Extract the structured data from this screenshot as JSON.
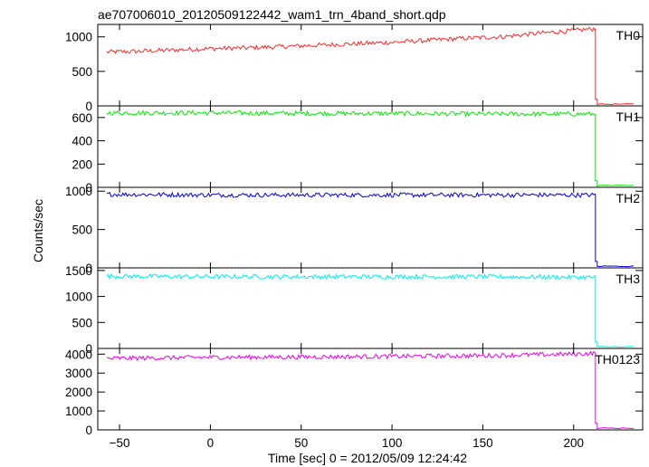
{
  "chart_data": {
    "type": "line",
    "title": "ae707006010_20120509122442_wam1_trn_4band_short.qdp",
    "xlabel": "Time [sec] 0 = 2012/05/09 12:24:42",
    "ylabel": "Counts/sec",
    "xlim": [
      -62,
      238
    ],
    "x_ticks": [
      -50,
      0,
      50,
      100,
      150,
      200
    ],
    "x_tick_labels": [
      "−50",
      "0",
      "50",
      "100",
      "150",
      "200"
    ],
    "drop_time": 212,
    "grid": false,
    "panels": [
      {
        "name": "TH0",
        "color": "#ff2a2a",
        "ylim": [
          0,
          1180
        ],
        "y_ticks": [
          0,
          500,
          1000
        ],
        "y_tick_labels": [
          "0",
          "500",
          "1000"
        ],
        "x": [
          -57,
          -40,
          -20,
          0,
          20,
          40,
          60,
          80,
          100,
          120,
          140,
          160,
          180,
          200,
          212,
          213,
          233
        ],
        "values": [
          780,
          790,
          810,
          830,
          840,
          860,
          880,
          900,
          920,
          950,
          980,
          1000,
          1050,
          1090,
          1120,
          0,
          0
        ]
      },
      {
        "name": "TH1",
        "color": "#00ee00",
        "ylim": [
          0,
          700
        ],
        "y_ticks": [
          0,
          200,
          400,
          600
        ],
        "y_tick_labels": [
          "0",
          "200",
          "400",
          "600"
        ],
        "x": [
          -57,
          0,
          50,
          100,
          150,
          200,
          212,
          213,
          233
        ],
        "values": [
          640,
          640,
          635,
          635,
          630,
          630,
          630,
          0,
          0
        ]
      },
      {
        "name": "TH2",
        "color": "#0000dd",
        "ylim": [
          0,
          1050
        ],
        "y_ticks": [
          0,
          500,
          1000
        ],
        "y_tick_labels": [
          "0",
          "500",
          "1000"
        ],
        "x": [
          -57,
          0,
          50,
          100,
          150,
          200,
          212,
          213,
          233
        ],
        "values": [
          960,
          950,
          950,
          950,
          950,
          950,
          950,
          0,
          0
        ]
      },
      {
        "name": "TH3",
        "color": "#00eeee",
        "ylim": [
          0,
          1550
        ],
        "y_ticks": [
          0,
          500,
          1000,
          1500
        ],
        "y_tick_labels": [
          "0",
          "500",
          "1000",
          "1500"
        ],
        "x": [
          -57,
          0,
          50,
          100,
          150,
          200,
          212,
          213,
          233
        ],
        "values": [
          1390,
          1380,
          1380,
          1380,
          1380,
          1370,
          1370,
          0,
          0
        ]
      },
      {
        "name": "TH0123",
        "color": "#ee00ee",
        "ylim": [
          0,
          4300
        ],
        "y_ticks": [
          0,
          1000,
          2000,
          3000,
          4000
        ],
        "y_tick_labels": [
          "0",
          "1000",
          "2000",
          "3000",
          "4000"
        ],
        "x": [
          -57,
          0,
          50,
          100,
          150,
          200,
          212,
          213,
          233
        ],
        "values": [
          3770,
          3830,
          3850,
          3880,
          3920,
          4000,
          4050,
          0,
          0
        ]
      }
    ]
  }
}
